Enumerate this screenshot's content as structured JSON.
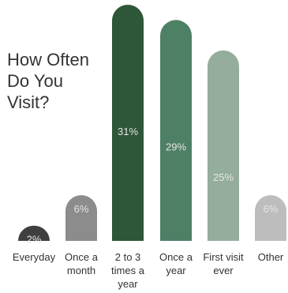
{
  "chart_data": {
    "type": "bar",
    "title_lines": [
      "How Often",
      "Do You",
      "Visit?"
    ],
    "categories": [
      [
        "Everyday"
      ],
      [
        "Once a",
        "month"
      ],
      [
        "2 to 3",
        "times a",
        "year"
      ],
      [
        "Once a",
        "year"
      ],
      [
        "First visit",
        "ever"
      ],
      [
        "Other"
      ]
    ],
    "values": [
      2,
      6,
      31,
      29,
      25,
      6
    ],
    "value_labels": [
      "2%",
      "6%",
      "31%",
      "29%",
      "25%",
      "6%"
    ],
    "unit": "%",
    "ylim": [
      0,
      31
    ],
    "grid": false,
    "legend": "none",
    "colors": [
      "#3f3f3f",
      "#8c8c8c",
      "#2e5638",
      "#4e8066",
      "#94ad9c",
      "#bdbdbd"
    ],
    "label_color": "#e6e6e6"
  }
}
